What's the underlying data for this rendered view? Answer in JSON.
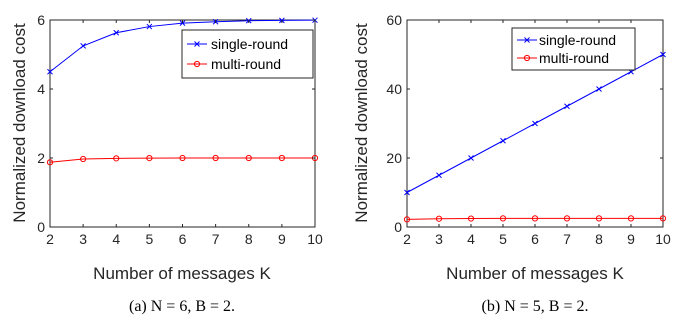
{
  "chart_data": [
    {
      "type": "line",
      "caption": "(a) N = 6, B = 2.",
      "xlabel": "Number of messages K",
      "ylabel": "Normalized download cost",
      "x": [
        2,
        3,
        4,
        5,
        6,
        7,
        8,
        9,
        10
      ],
      "xlim": [
        2,
        10
      ],
      "ylim": [
        0,
        6
      ],
      "xticks": [
        "2",
        "3",
        "4",
        "5",
        "6",
        "7",
        "8",
        "9",
        "10"
      ],
      "yticks": [
        "0",
        "2",
        "4",
        "6"
      ],
      "legend_position": "top-right",
      "series": [
        {
          "name": "single-round",
          "color": "#0000ff",
          "marker": "x",
          "values": [
            4.5,
            5.25,
            5.63,
            5.81,
            5.91,
            5.95,
            5.98,
            5.99,
            5.995
          ]
        },
        {
          "name": "multi-round",
          "color": "#ff0000",
          "marker": "o",
          "values": [
            1.875,
            1.97,
            1.99,
            1.997,
            1.999,
            2.0,
            2.0,
            2.0,
            2.0
          ]
        }
      ]
    },
    {
      "type": "line",
      "caption": "(b) N = 5, B = 2.",
      "xlabel": "Number of messages K",
      "ylabel": "Normalized download cost",
      "x": [
        2,
        3,
        4,
        5,
        6,
        7,
        8,
        9,
        10
      ],
      "xlim": [
        2,
        10
      ],
      "ylim": [
        0,
        60
      ],
      "xticks": [
        "2",
        "3",
        "4",
        "5",
        "6",
        "7",
        "8",
        "9",
        "10"
      ],
      "yticks": [
        "0",
        "20",
        "40",
        "60"
      ],
      "legend_position": "top-right",
      "series": [
        {
          "name": "single-round",
          "color": "#0000ff",
          "marker": "x",
          "values": [
            10,
            15,
            20,
            25,
            30,
            35,
            40,
            45,
            50
          ]
        },
        {
          "name": "multi-round",
          "color": "#ff0000",
          "marker": "o",
          "values": [
            2.2,
            2.4,
            2.45,
            2.5,
            2.5,
            2.5,
            2.5,
            2.5,
            2.5
          ]
        }
      ]
    }
  ]
}
